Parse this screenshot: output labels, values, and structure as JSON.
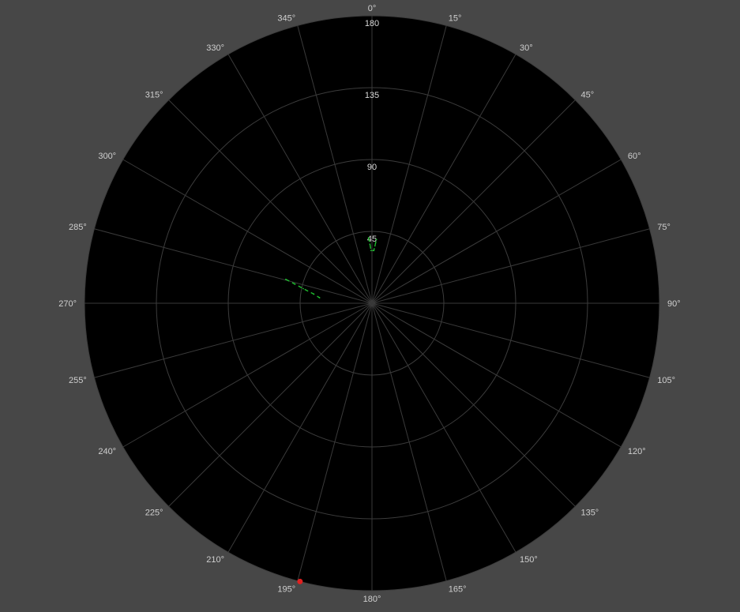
{
  "chart_data": {
    "type": "polar-scatter",
    "title": "",
    "angular_axis": {
      "direction": "clockwise",
      "zero": "top",
      "tick_step_deg": 15,
      "tick_labels": [
        "0°",
        "15°",
        "30°",
        "45°",
        "60°",
        "75°",
        "90°",
        "105°",
        "120°",
        "135°",
        "150°",
        "165°",
        "180°",
        "195°",
        "210°",
        "225°",
        "240°",
        "255°",
        "270°",
        "285°",
        "300°",
        "315°",
        "330°",
        "345°"
      ]
    },
    "radial_axis": {
      "range": [
        0,
        180
      ],
      "ticks": [
        45,
        90,
        135,
        180
      ],
      "tick_labels": [
        "45",
        "90",
        "135",
        "180"
      ],
      "label_angle_deg": 0
    },
    "grid": true,
    "series": [
      {
        "color": "#1fbf2f",
        "style": "dashed",
        "points": [
          {
            "angle": 357,
            "r": 41
          },
          {
            "angle": 358,
            "r": 37
          },
          {
            "angle": 359,
            "r": 33
          },
          {
            "angle": 2,
            "r": 33
          },
          {
            "angle": 3,
            "r": 36
          },
          {
            "angle": 4,
            "r": 40
          }
        ]
      },
      {
        "color": "#1fbf2f",
        "style": "dashed",
        "points": [
          {
            "angle": 285.5,
            "r": 56
          },
          {
            "angle": 284,
            "r": 50
          },
          {
            "angle": 282,
            "r": 44
          },
          {
            "angle": 279,
            "r": 37
          },
          {
            "angle": 276,
            "r": 33
          }
        ]
      },
      {
        "color": "#e02020",
        "style": "marker",
        "points": [
          {
            "angle": 194.5,
            "r": 180
          }
        ]
      }
    ]
  }
}
